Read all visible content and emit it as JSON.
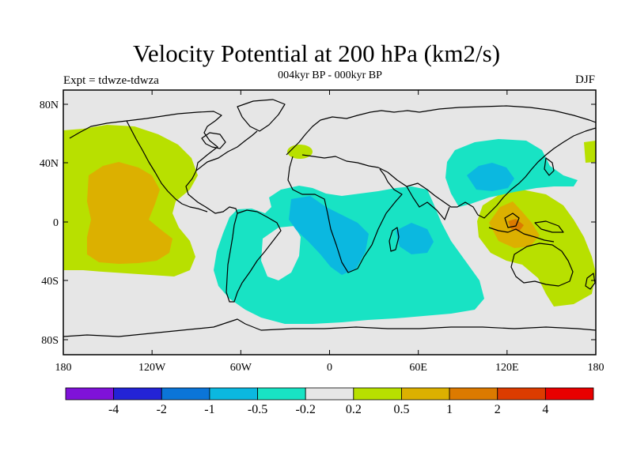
{
  "title": "Velocity Potential at 200 hPa (km2/s)",
  "subtitle": "004kyr BP - 000kyr BP",
  "expt_label": "Expt = tdwze-tdwza",
  "season": "DJF",
  "axes": {
    "lat_labels": [
      "80N",
      "40N",
      "0",
      "40S",
      "80S"
    ],
    "lon_labels": [
      "180",
      "120W",
      "60W",
      "0",
      "60E",
      "120E",
      "180"
    ]
  },
  "colorbar": {
    "colors": [
      "#7f12d9",
      "#2323d6",
      "#0b75d8",
      "#0bb8e0",
      "#18e3c4",
      "#e6e6e6",
      "#b8e000",
      "#dcb000",
      "#dc7a00",
      "#dc3c00",
      "#e80000"
    ],
    "labels": [
      "-4",
      "-2",
      "-1",
      "-0.5",
      "-0.2",
      "0.2",
      "0.5",
      "1",
      "2",
      "4"
    ]
  },
  "map_colors": {
    "neutral": "#e6e6e6",
    "pos_weak": "#b8e000",
    "pos_mid": "#dcb000",
    "pos_strong": "#dc7a00",
    "neg_weak": "#18e3c4",
    "neg_mid": "#0bb8e0"
  }
}
